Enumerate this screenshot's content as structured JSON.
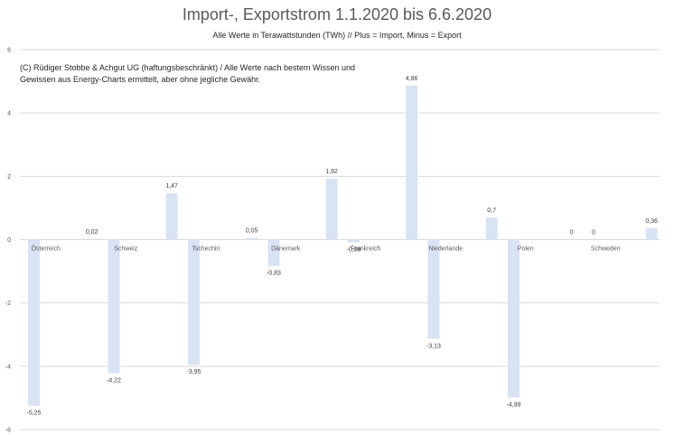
{
  "chart_data": {
    "type": "bar",
    "title": "Import-, Exportstrom 1.1.2020 bis 6.6.2020",
    "subtitle": "Alle Werte in Terawattstunden (TWh) // Plus = Import, Minus = Export",
    "note": "(C) Rüdiger Stobbe & Achgut UG (haftungsbeschränkt) / Alle Werte nach bestem Wissen und Gewissen aus Energy-Charts ermittelt, aber ohne jegliche Gewähr.",
    "categories": [
      "Österreich",
      "Schweiz",
      "Tschechin",
      "Dänemark",
      "Frankreich",
      "Niederlande",
      "Polen",
      "Schweden"
    ],
    "series": [
      {
        "values": [
          -5.25,
          -4.22,
          -3.95,
          -0.83,
          -0.09,
          -3.13,
          -4.99,
          0
        ]
      },
      {
        "values": [
          0.02,
          1.47,
          0.05,
          1.92,
          4.86,
          0.7,
          0,
          0.36
        ]
      }
    ],
    "value_labels": [
      [
        "-5,25",
        "-4,22",
        "-3,95",
        "-0,83",
        "-0,09",
        "-3,13",
        "-4,99",
        "0"
      ],
      [
        "0,02",
        "1,47",
        "0,05",
        "1,92",
        "4,86",
        "0,7",
        "0",
        "0,36"
      ]
    ],
    "yticks": [
      6,
      4,
      2,
      0,
      -2,
      -4,
      -6
    ],
    "ytick_labels": [
      "6",
      "4",
      "2",
      "0",
      "-2",
      "-4",
      "-6"
    ],
    "ylim": [
      -6,
      6
    ],
    "grid": true,
    "bar_color": "#dae3f3"
  }
}
